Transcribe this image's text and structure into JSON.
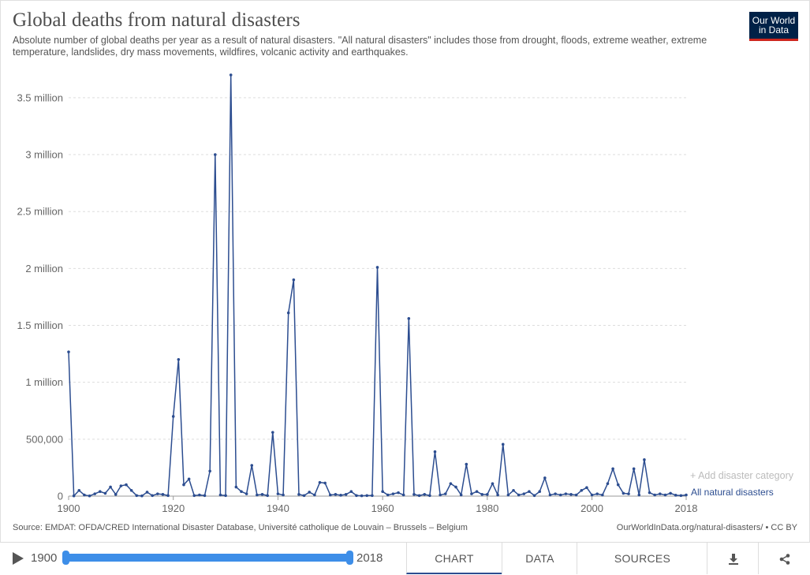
{
  "header": {
    "title": "Global deaths from natural disasters",
    "subtitle": "Absolute number of global deaths per year as a result of natural disasters. \"All natural disasters\" includes those from drought, floods, extreme weather, extreme temperature, landslides, dry mass movements, wildfires, volcanic activity and earthquakes.",
    "logo_line1": "Our World",
    "logo_line2": "in Data"
  },
  "controls": {
    "add_category": "+ Add disaster category"
  },
  "footer": {
    "source": "Source: EMDAT: OFDA/CRED International Disaster Database, Université catholique de Louvain – Brussels – Belgium",
    "license": "OurWorldInData.org/natural-disasters/ • CC BY",
    "start_year": "1900",
    "end_year": "2018",
    "tabs": {
      "chart": "CHART",
      "data": "DATA",
      "sources": "SOURCES"
    },
    "icons": {
      "play": "play-icon",
      "download": "download-icon",
      "share": "share-icon"
    }
  },
  "colors": {
    "series": "#2c4d90",
    "logo_bg": "#002147",
    "logo_accent": "#ce261e",
    "timeline": "#3d8ee8"
  },
  "chart_data": {
    "type": "line",
    "xlim": [
      1900,
      2018
    ],
    "ylim": [
      0,
      3700000
    ],
    "x_ticks": [
      1900,
      1920,
      1940,
      1960,
      1980,
      2000,
      2018
    ],
    "x_tick_labels": [
      "1900",
      "1920",
      "1940",
      "1960",
      "1980",
      "2000",
      "2018"
    ],
    "y_ticks": [
      0,
      500000,
      1000000,
      1500000,
      2000000,
      2500000,
      3000000,
      3500000
    ],
    "y_tick_labels": [
      "0",
      "500,000",
      "1 million",
      "1.5 million",
      "2 million",
      "2.5 million",
      "3 million",
      "3.5 million"
    ],
    "grid": "horizontal dashed",
    "series": [
      {
        "name": "All natural disasters",
        "x": [
          1900,
          1901,
          1902,
          1903,
          1904,
          1905,
          1906,
          1907,
          1908,
          1909,
          1910,
          1911,
          1912,
          1913,
          1914,
          1915,
          1916,
          1917,
          1918,
          1919,
          1920,
          1921,
          1922,
          1923,
          1924,
          1925,
          1926,
          1927,
          1928,
          1929,
          1930,
          1931,
          1932,
          1933,
          1934,
          1935,
          1936,
          1937,
          1938,
          1939,
          1940,
          1941,
          1942,
          1943,
          1944,
          1945,
          1946,
          1947,
          1948,
          1949,
          1950,
          1951,
          1952,
          1953,
          1954,
          1955,
          1956,
          1957,
          1958,
          1959,
          1960,
          1961,
          1962,
          1963,
          1964,
          1965,
          1966,
          1967,
          1968,
          1969,
          1970,
          1971,
          1972,
          1973,
          1974,
          1975,
          1976,
          1977,
          1978,
          1979,
          1980,
          1981,
          1982,
          1983,
          1984,
          1985,
          1986,
          1987,
          1988,
          1989,
          1990,
          1991,
          1992,
          1993,
          1994,
          1995,
          1996,
          1997,
          1998,
          1999,
          2000,
          2001,
          2002,
          2003,
          2004,
          2005,
          2006,
          2007,
          2008,
          2009,
          2010,
          2011,
          2012,
          2013,
          2014,
          2015,
          2016,
          2017,
          2018
        ],
        "values": [
          1267000,
          2000,
          50000,
          10000,
          2000,
          20000,
          40000,
          25000,
          80000,
          15000,
          90000,
          100000,
          50000,
          5000,
          2000,
          35000,
          5000,
          20000,
          15000,
          5000,
          700000,
          1200000,
          100000,
          150000,
          5000,
          10000,
          5000,
          220000,
          3000000,
          10000,
          5000,
          3700000,
          80000,
          40000,
          20000,
          270000,
          10000,
          15000,
          5000,
          560000,
          20000,
          10000,
          1610000,
          1900000,
          15000,
          5000,
          35000,
          10000,
          120000,
          115000,
          10000,
          15000,
          8000,
          15000,
          40000,
          5000,
          3000,
          5000,
          5000,
          2010000,
          40000,
          10000,
          20000,
          30000,
          10000,
          1560000,
          15000,
          5000,
          15000,
          5000,
          390000,
          10000,
          20000,
          110000,
          80000,
          10000,
          280000,
          20000,
          40000,
          15000,
          15000,
          110000,
          10000,
          455000,
          10000,
          50000,
          10000,
          20000,
          40000,
          5000,
          40000,
          160000,
          10000,
          20000,
          10000,
          20000,
          15000,
          10000,
          50000,
          75000,
          10000,
          20000,
          10000,
          110000,
          240000,
          100000,
          25000,
          20000,
          240000,
          10000,
          320000,
          30000,
          10000,
          20000,
          10000,
          25000,
          8000,
          5000,
          10000
        ]
      }
    ]
  }
}
